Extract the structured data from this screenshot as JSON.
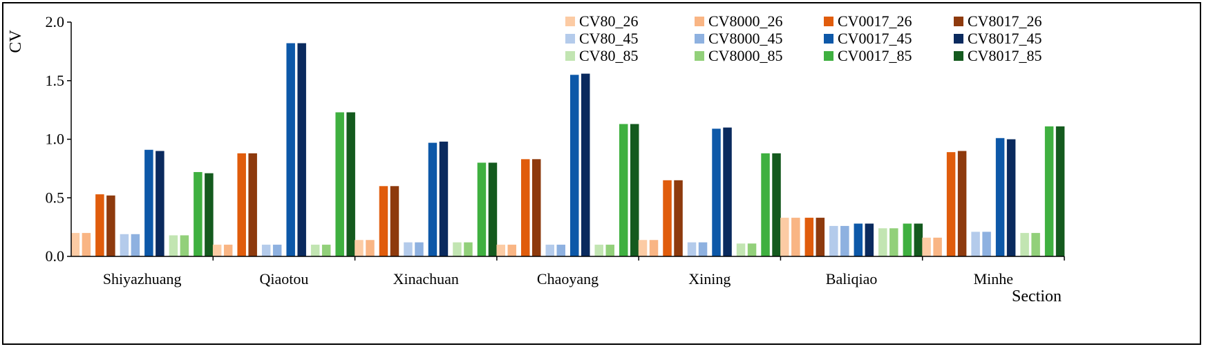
{
  "chart_data": {
    "type": "bar",
    "title": "",
    "xlabel": "Section",
    "ylabel": "CV",
    "ylim": [
      0,
      2.0
    ],
    "yticks": [
      "0.0",
      "0.5",
      "1.0",
      "1.5",
      "2.0"
    ],
    "grid": false,
    "legend_position": "top-right",
    "categories": [
      "Shiyazhuang",
      "Qiaotou",
      "Xinachuan",
      "Chaoyang",
      "Xining",
      "Baliqiao",
      "Minhe"
    ],
    "series": [
      {
        "name": "CV80_26",
        "color": "#FCCBA4",
        "values": [
          0.2,
          0.1,
          0.14,
          0.1,
          0.14,
          0.33,
          0.16
        ]
      },
      {
        "name": "CV8000_26",
        "color": "#F9B584",
        "values": [
          0.2,
          0.1,
          0.14,
          0.1,
          0.14,
          0.33,
          0.16
        ]
      },
      {
        "name": "CV0017_26",
        "color": "#E05C0C",
        "values": [
          0.53,
          0.88,
          0.6,
          0.83,
          0.65,
          0.33,
          0.89
        ]
      },
      {
        "name": "CV8017_26",
        "color": "#8E3A0D",
        "values": [
          0.52,
          0.88,
          0.6,
          0.83,
          0.65,
          0.33,
          0.9
        ]
      },
      {
        "name": "CV80_45",
        "color": "#B4CBEB",
        "values": [
          0.19,
          0.1,
          0.12,
          0.1,
          0.12,
          0.26,
          0.21
        ]
      },
      {
        "name": "CV8000_45",
        "color": "#8EB1E0",
        "values": [
          0.19,
          0.1,
          0.12,
          0.1,
          0.12,
          0.26,
          0.21
        ]
      },
      {
        "name": "CV0017_45",
        "color": "#0D58A8",
        "values": [
          0.91,
          1.82,
          0.97,
          1.55,
          1.09,
          0.28,
          1.01
        ]
      },
      {
        "name": "CV8017_45",
        "color": "#0A2A5E",
        "values": [
          0.9,
          1.82,
          0.98,
          1.56,
          1.1,
          0.28,
          1.0
        ]
      },
      {
        "name": "CV80_85",
        "color": "#C2E5B2",
        "values": [
          0.18,
          0.1,
          0.12,
          0.1,
          0.11,
          0.24,
          0.2
        ]
      },
      {
        "name": "CV8000_85",
        "color": "#92D07A",
        "values": [
          0.18,
          0.1,
          0.12,
          0.1,
          0.11,
          0.24,
          0.2
        ]
      },
      {
        "name": "CV0017_85",
        "color": "#3FB040",
        "values": [
          0.72,
          1.23,
          0.8,
          1.13,
          0.88,
          0.28,
          1.11
        ]
      },
      {
        "name": "CV8017_85",
        "color": "#145A1E",
        "values": [
          0.71,
          1.23,
          0.8,
          1.13,
          0.88,
          0.28,
          1.11
        ]
      }
    ]
  }
}
